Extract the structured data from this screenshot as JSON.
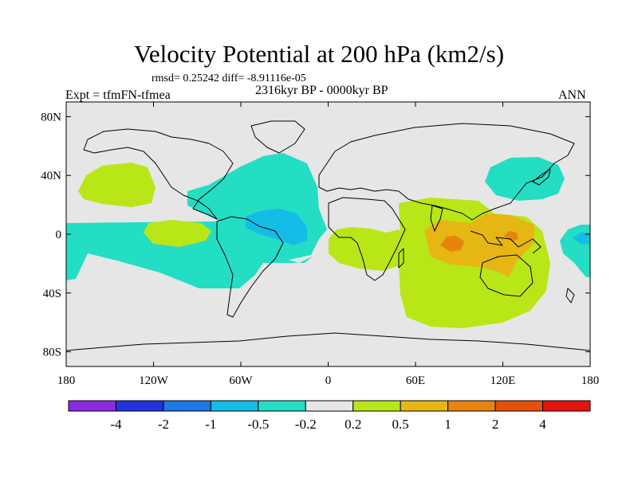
{
  "title": "Velocity Potential at 200 hPa (km2/s)",
  "stats": "rmsd= 0.25242 diff= -8.91116e-05",
  "left_label": "Expt = tfmFN-tfmea",
  "center_label": "2316kyr BP - 0000kyr BP",
  "right_label": "ANN",
  "map": {
    "lon_ticks": [
      "180",
      "120W",
      "60W",
      "0",
      "60E",
      "120E",
      "180"
    ],
    "lat_ticks": [
      "80N",
      "40N",
      "0",
      "40S",
      "80S"
    ]
  },
  "colorbar": {
    "colors": [
      "#8a2be2",
      "#2233dd",
      "#1e78e6",
      "#14bce6",
      "#23ddc4",
      "#e6e6e6",
      "#b9e617",
      "#e6b614",
      "#e6840e",
      "#e6500a",
      "#e6140f"
    ],
    "labels": [
      "-4",
      "-2",
      "-1",
      "-0.5",
      "-0.2",
      "0.2",
      "0.5",
      "1",
      "2",
      "4"
    ]
  }
}
